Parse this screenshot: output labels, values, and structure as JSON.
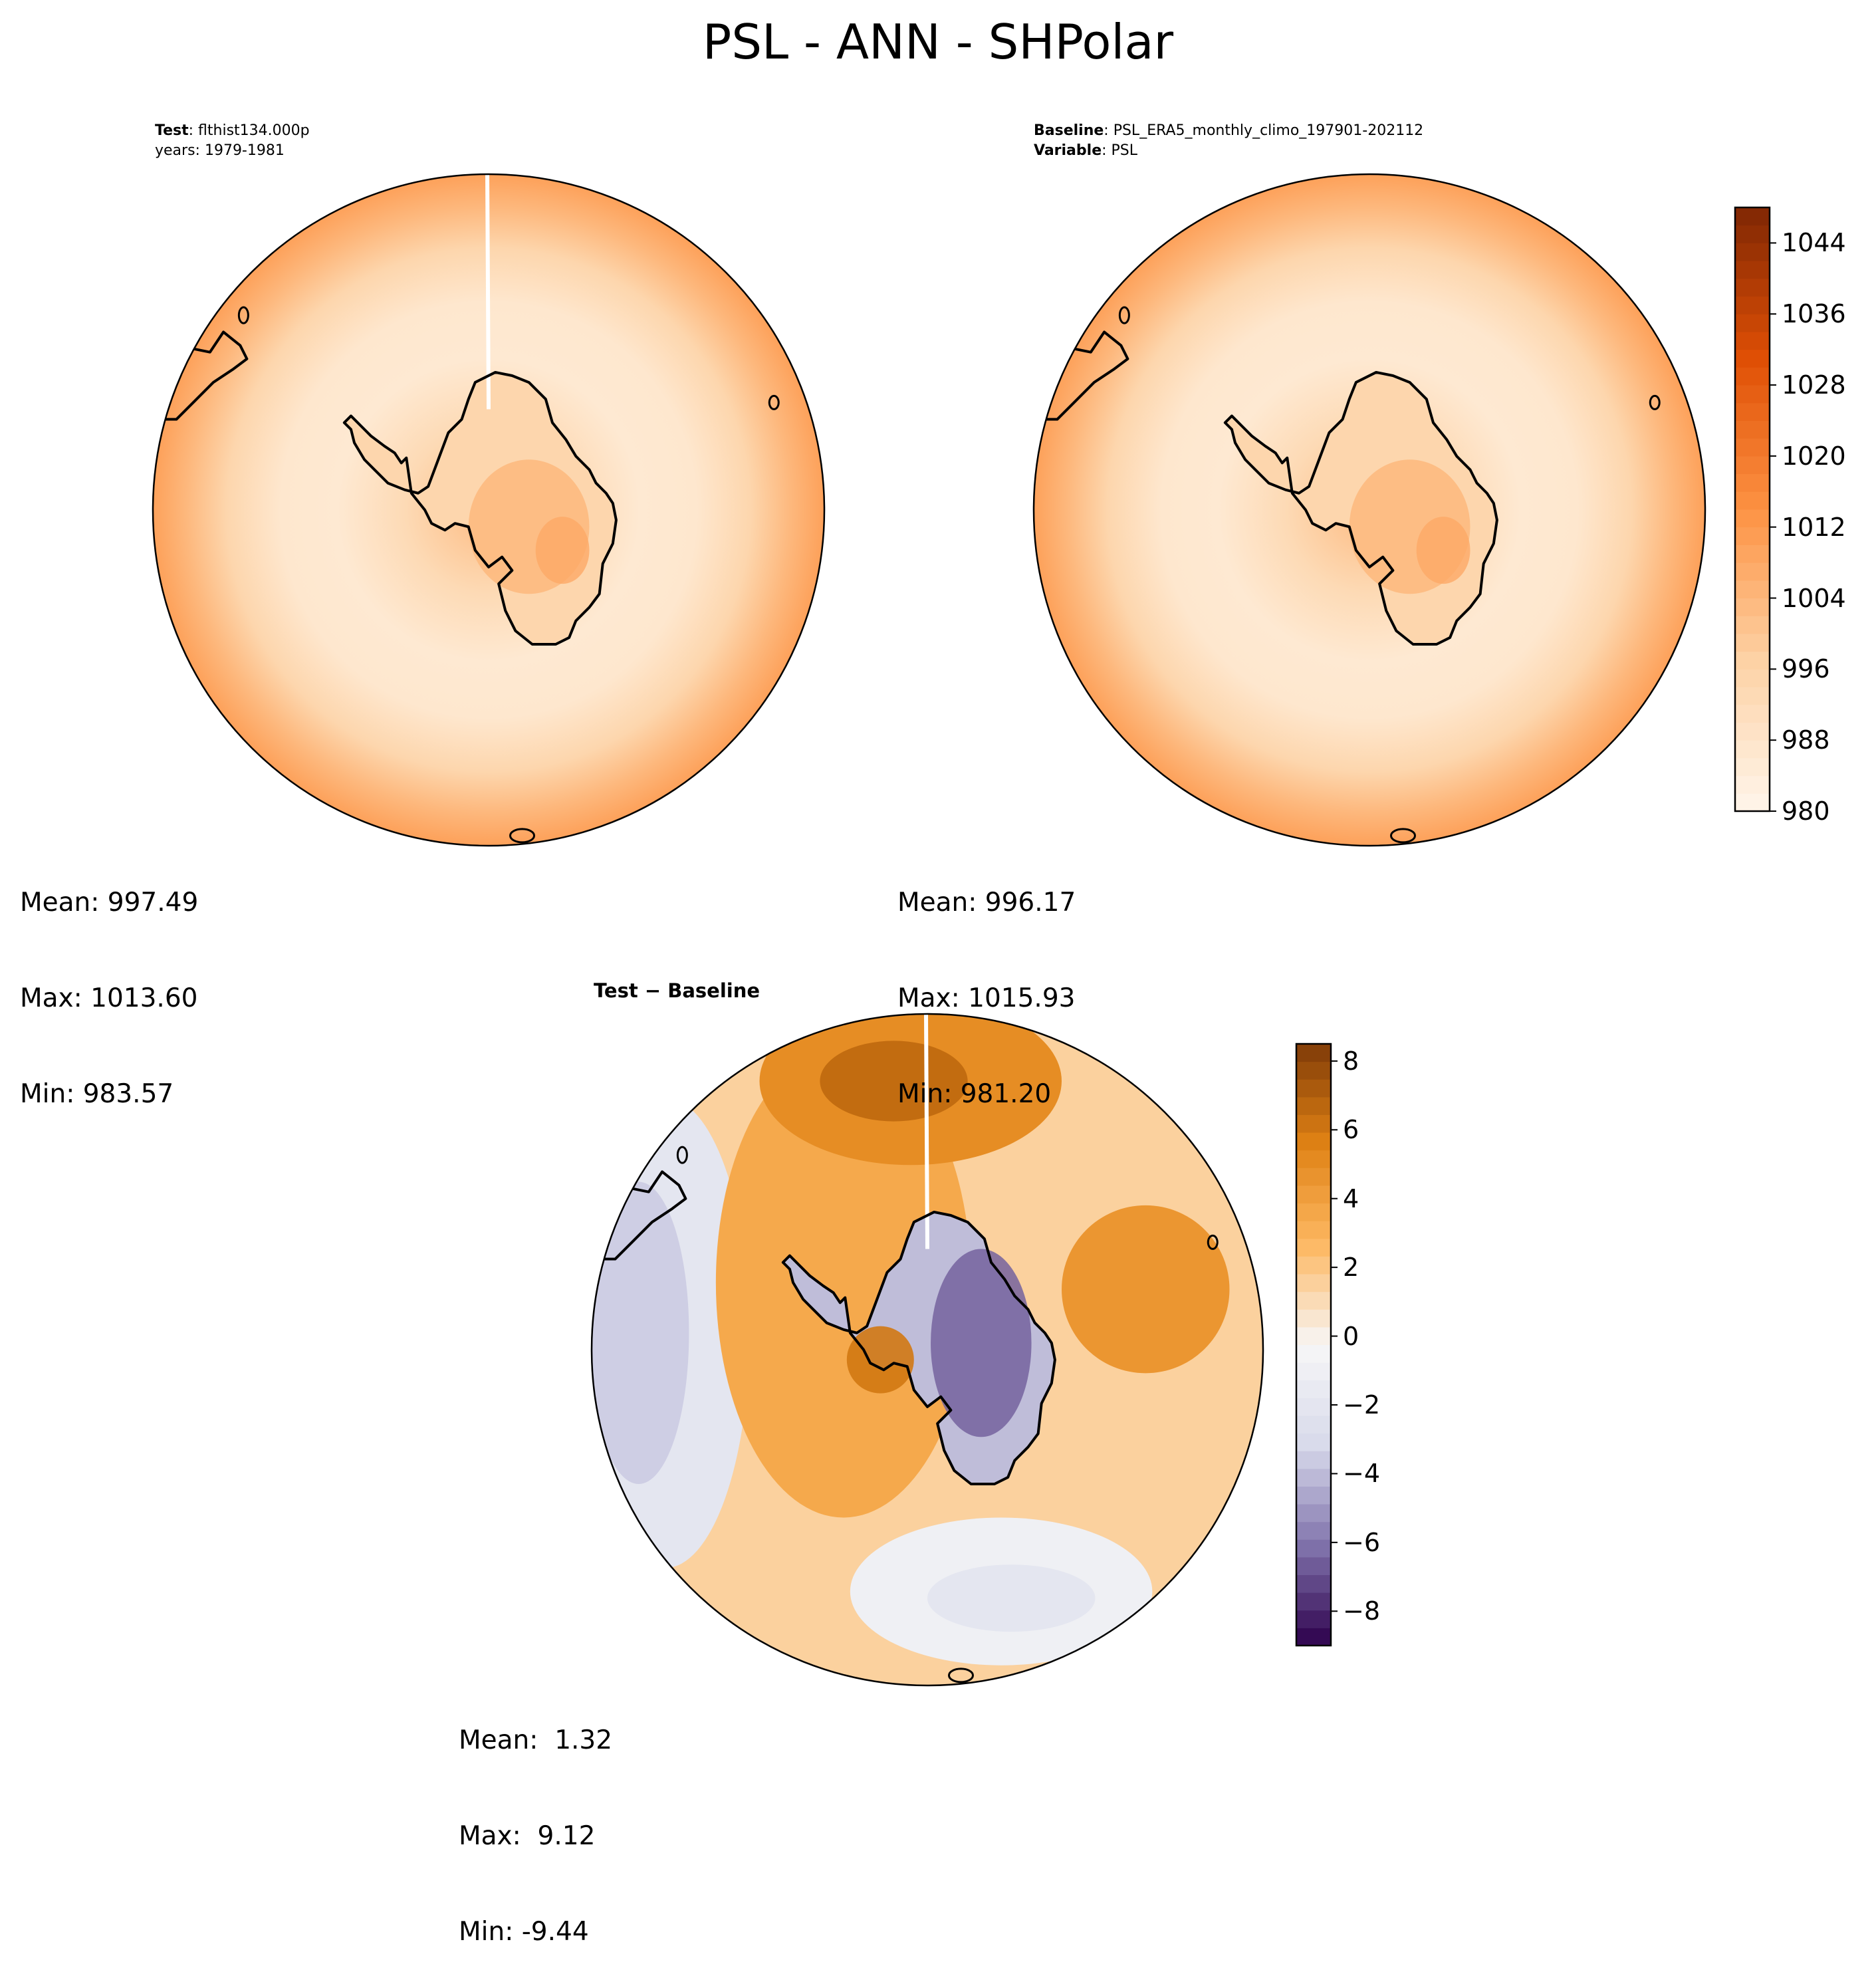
{
  "title": "PSL - ANN - SHPolar",
  "panels": [
    {
      "id": "test",
      "title_lines": [
        {
          "bold": "Test",
          "text": ": flthist134.000p"
        },
        {
          "bold": "",
          "text": "years: 1979-1981"
        }
      ],
      "stats": {
        "mean": "Mean: 997.49",
        "max": "Max: 1013.60",
        "min": "Min: 983.57"
      }
    },
    {
      "id": "baseline",
      "title_lines": [
        {
          "bold": "Baseline",
          "text": ": PSL_ERA5_monthly_climo_197901-202112"
        },
        {
          "bold": "Variable",
          "text": ": PSL"
        }
      ],
      "stats": {
        "mean": "Mean: 996.17",
        "max": "Max: 1015.93",
        "min": "Min: 981.20"
      }
    },
    {
      "id": "diff",
      "title_lines": [
        {
          "bold": "Test − Baseline",
          "text": ""
        }
      ],
      "stats": {
        "mean": "Mean:  1.32",
        "max": "Max:  9.12",
        "min": "Min: -9.44"
      }
    }
  ],
  "colorbar_main": {
    "colormap": "Oranges",
    "range": [
      980,
      1048
    ],
    "ticks": [
      "980",
      "988",
      "996",
      "1004",
      "1012",
      "1020",
      "1028",
      "1036",
      "1044"
    ],
    "colors": [
      "#fff5eb",
      "#fdd2a5",
      "#fd9243",
      "#df4f05",
      "#7f2704"
    ]
  },
  "colorbar_diff": {
    "colormap": "PuOr_r",
    "range": [
      -9,
      8.5
    ],
    "ticks": [
      "−8",
      "−6",
      "−4",
      "−2",
      "0",
      "2",
      "4",
      "6",
      "8"
    ],
    "colors": [
      "#2d004b",
      "#8073ac",
      "#d8daeb",
      "#f7f7f7",
      "#fdb863",
      "#e08214",
      "#7f3b08"
    ]
  },
  "chart_data": [
    {
      "type": "heatmap",
      "projection": "South Polar Stereographic",
      "title": "Test: flthist134.000p, years: 1979-1981",
      "variable": "PSL",
      "units_range": [
        980,
        1048
      ],
      "mean": 997.49,
      "max": 1013.6,
      "min": 983.57
    },
    {
      "type": "heatmap",
      "projection": "South Polar Stereographic",
      "title": "Baseline: PSL_ERA5_monthly_climo_197901-202112",
      "variable": "PSL",
      "units_range": [
        980,
        1048
      ],
      "mean": 996.17,
      "max": 1015.93,
      "min": 981.2
    },
    {
      "type": "heatmap",
      "projection": "South Polar Stereographic",
      "title": "Test − Baseline",
      "units_range": [
        -9,
        8.5
      ],
      "mean": 1.32,
      "max": 9.12,
      "min": -9.44
    }
  ]
}
